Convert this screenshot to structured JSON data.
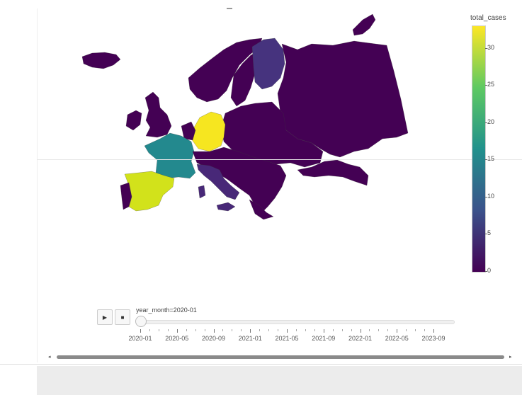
{
  "colorbar": {
    "title": "total_cases",
    "ticks": [
      "30",
      "25",
      "20",
      "15",
      "10",
      "5",
      "0"
    ],
    "max": 33,
    "colors": [
      "#440154",
      "#3b528b",
      "#21918c",
      "#5ec962",
      "#fde725"
    ]
  },
  "countries": [
    {
      "name": "Spain",
      "value": 30,
      "color": "#d2e21b"
    },
    {
      "name": "Portugal",
      "value": 0,
      "color": "#440154"
    },
    {
      "name": "France",
      "value": 18,
      "color": "#23898e"
    },
    {
      "name": "Germany",
      "value": 33,
      "color": "#f6e620"
    },
    {
      "name": "Italy",
      "value": 3,
      "color": "#482878"
    },
    {
      "name": "Finland",
      "value": 4,
      "color": "#46337e"
    },
    {
      "name": "United Kingdom",
      "value": 0,
      "color": "#440154"
    },
    {
      "name": "Russia",
      "value": 0,
      "color": "#440154"
    }
  ],
  "animation": {
    "play_icon": "▶",
    "stop_icon": "■",
    "slider_label": "year_month=2020-01",
    "ticks": [
      "2020-01",
      "2020-05",
      "2020-09",
      "2021-01",
      "2021-05",
      "2021-09",
      "2022-01",
      "2022-05",
      "2023-09"
    ]
  },
  "scrollbar": {
    "left_arrow": "◂",
    "right_arrow": "▸"
  }
}
